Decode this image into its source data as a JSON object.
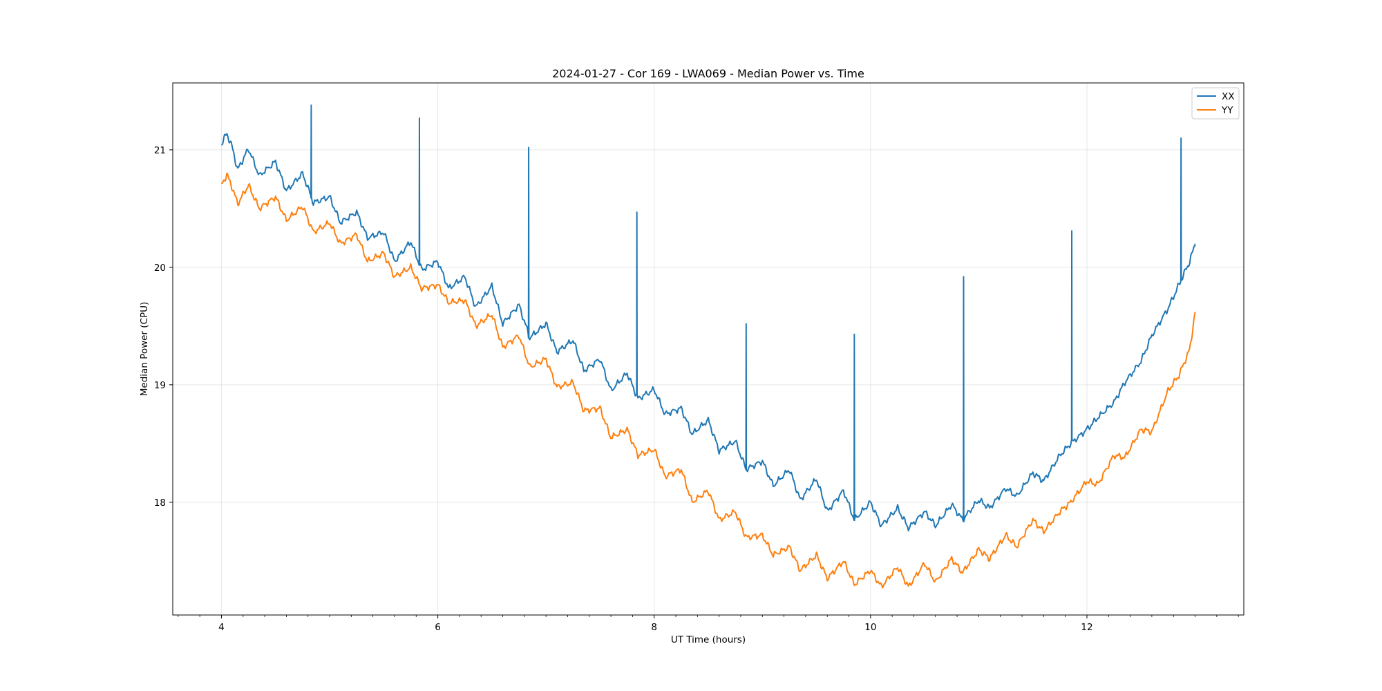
{
  "chart_data": {
    "type": "line",
    "title": "2024-01-27 - Cor 169 - LWA069 - Median Power vs. Time",
    "xlabel": "UT Time (hours)",
    "ylabel": "Median Power (CPU)",
    "xlim": [
      3.55,
      13.45
    ],
    "ylim": [
      17.04,
      21.57
    ],
    "xticks": [
      4,
      6,
      8,
      10,
      12
    ],
    "xtick_labels": [
      "4",
      "6",
      "8",
      "10",
      "12"
    ],
    "yticks": [
      18,
      19,
      20,
      21
    ],
    "ytick_labels": [
      "18",
      "19",
      "20",
      "21"
    ],
    "grid": true,
    "legend_position": "top-right",
    "series": [
      {
        "name": "XX",
        "color": "#1f77b4",
        "x": [
          4.0,
          4.05,
          4.1,
          4.15,
          4.25,
          4.35,
          4.5,
          4.6,
          4.75,
          4.85,
          5.0,
          5.1,
          5.25,
          5.35,
          5.5,
          5.6,
          5.75,
          5.85,
          6.0,
          6.1,
          6.25,
          6.35,
          6.5,
          6.6,
          6.75,
          6.85,
          7.0,
          7.1,
          7.25,
          7.35,
          7.5,
          7.6,
          7.75,
          7.85,
          8.0,
          8.1,
          8.25,
          8.35,
          8.5,
          8.6,
          8.75,
          8.85,
          9.0,
          9.1,
          9.25,
          9.35,
          9.5,
          9.6,
          9.75,
          9.85,
          10.0,
          10.1,
          10.25,
          10.35,
          10.5,
          10.6,
          10.75,
          10.85,
          11.0,
          11.1,
          11.25,
          11.35,
          11.5,
          11.6,
          11.75,
          11.85,
          12.0,
          12.1,
          12.25,
          12.35,
          12.5,
          12.6,
          12.75,
          12.85,
          12.95,
          13.0
        ],
        "y": [
          21.05,
          21.14,
          21.02,
          20.83,
          21.01,
          20.78,
          20.9,
          20.65,
          20.8,
          20.55,
          20.6,
          20.38,
          20.47,
          20.25,
          20.3,
          20.05,
          20.22,
          19.98,
          20.05,
          19.82,
          19.92,
          19.66,
          19.84,
          19.52,
          19.68,
          19.4,
          19.52,
          19.28,
          19.38,
          19.12,
          19.22,
          18.95,
          19.1,
          18.88,
          18.96,
          18.75,
          18.8,
          18.58,
          18.7,
          18.44,
          18.52,
          18.28,
          18.35,
          18.14,
          18.28,
          18.02,
          18.2,
          17.92,
          18.1,
          17.85,
          18.0,
          17.8,
          17.95,
          17.78,
          17.92,
          17.8,
          17.98,
          17.85,
          18.02,
          17.95,
          18.12,
          18.05,
          18.25,
          18.18,
          18.4,
          18.5,
          18.62,
          18.72,
          18.85,
          19.02,
          19.2,
          19.42,
          19.65,
          19.85,
          20.05,
          20.2
        ],
        "spikes": [
          [
            4.83,
            21.38
          ],
          [
            5.83,
            21.27
          ],
          [
            6.84,
            21.02
          ],
          [
            7.84,
            20.47
          ],
          [
            8.85,
            19.52
          ],
          [
            9.85,
            19.43
          ],
          [
            10.86,
            19.92
          ],
          [
            11.86,
            20.31
          ],
          [
            12.87,
            21.1
          ]
        ]
      },
      {
        "name": "YY",
        "color": "#ff7f0e",
        "x": [
          4.0,
          4.05,
          4.1,
          4.15,
          4.25,
          4.35,
          4.5,
          4.6,
          4.75,
          4.85,
          5.0,
          5.1,
          5.25,
          5.35,
          5.5,
          5.6,
          5.75,
          5.85,
          6.0,
          6.1,
          6.25,
          6.35,
          6.5,
          6.6,
          6.75,
          6.85,
          7.0,
          7.1,
          7.25,
          7.35,
          7.5,
          7.6,
          7.75,
          7.85,
          8.0,
          8.1,
          8.25,
          8.35,
          8.5,
          8.6,
          8.75,
          8.85,
          9.0,
          9.1,
          9.25,
          9.35,
          9.5,
          9.6,
          9.75,
          9.85,
          10.0,
          10.1,
          10.25,
          10.35,
          10.5,
          10.6,
          10.75,
          10.85,
          11.0,
          11.1,
          11.25,
          11.35,
          11.5,
          11.6,
          11.75,
          11.85,
          12.0,
          12.1,
          12.25,
          12.35,
          12.5,
          12.6,
          12.75,
          12.85,
          12.95,
          13.0
        ],
        "y": [
          20.7,
          20.79,
          20.68,
          20.54,
          20.7,
          20.5,
          20.6,
          20.4,
          20.52,
          20.3,
          20.38,
          20.2,
          20.28,
          20.05,
          20.12,
          19.92,
          20.0,
          19.82,
          19.85,
          19.7,
          19.72,
          19.5,
          19.6,
          19.32,
          19.42,
          19.15,
          19.22,
          18.98,
          19.02,
          18.78,
          18.8,
          18.55,
          18.62,
          18.4,
          18.45,
          18.22,
          18.28,
          18.0,
          18.1,
          17.85,
          17.92,
          17.7,
          17.72,
          17.55,
          17.62,
          17.42,
          17.55,
          17.35,
          17.5,
          17.3,
          17.42,
          17.28,
          17.45,
          17.28,
          17.48,
          17.32,
          17.52,
          17.4,
          17.6,
          17.52,
          17.72,
          17.62,
          17.85,
          17.75,
          17.92,
          18.0,
          18.18,
          18.15,
          18.4,
          18.38,
          18.62,
          18.6,
          18.95,
          19.08,
          19.3,
          19.62
        ],
        "spikes": []
      }
    ]
  }
}
